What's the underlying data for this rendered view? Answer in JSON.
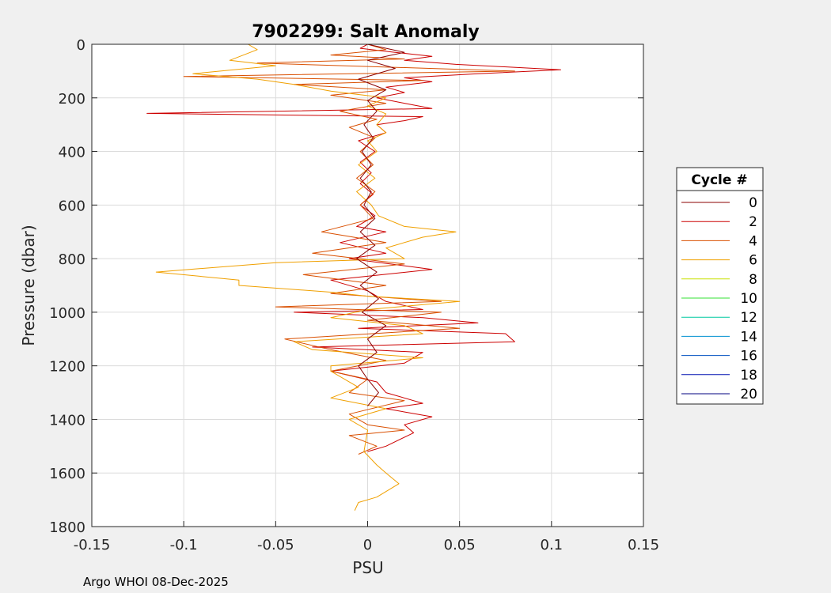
{
  "chart_data": {
    "type": "line",
    "title": "7902299: Salt Anomaly",
    "xlabel": "PSU",
    "ylabel": "Pressure (dbar)",
    "xlim": [
      -0.15,
      0.15
    ],
    "ylim": [
      0,
      1800
    ],
    "y_reversed": true,
    "grid": true,
    "x_ticks": [
      -0.15,
      -0.1,
      -0.05,
      0,
      0.05,
      0.1,
      0.15
    ],
    "x_tick_labels": [
      "-0.15",
      "-0.1",
      "-0.05",
      "0",
      "0.05",
      "0.1",
      "0.15"
    ],
    "y_ticks": [
      0,
      200,
      400,
      600,
      800,
      1000,
      1200,
      1400,
      1600,
      1800
    ],
    "y_tick_labels": [
      "0",
      "200",
      "400",
      "600",
      "800",
      "1000",
      "1200",
      "1400",
      "1600",
      "1800"
    ],
    "legend": {
      "title": "Cycle #",
      "position": "right-outside",
      "entries": [
        {
          "label": "0",
          "color": "#8b0000"
        },
        {
          "label": "2",
          "color": "#cc0000"
        },
        {
          "label": "4",
          "color": "#d94f00"
        },
        {
          "label": "6",
          "color": "#f0a000"
        },
        {
          "label": "8",
          "color": "#c8e000"
        },
        {
          "label": "10",
          "color": "#33e033"
        },
        {
          "label": "12",
          "color": "#00c8a0"
        },
        {
          "label": "14",
          "color": "#0090d0"
        },
        {
          "label": "16",
          "color": "#0050c0"
        },
        {
          "label": "18",
          "color": "#0010b0"
        },
        {
          "label": "20",
          "color": "#000080"
        }
      ]
    },
    "series": [
      {
        "name": "Cycle 2",
        "color": "#cc0000",
        "points": [
          [
            0.0,
            0
          ],
          [
            -0.004,
            15
          ],
          [
            0.015,
            30
          ],
          [
            0.035,
            45
          ],
          [
            0.02,
            60
          ],
          [
            0.048,
            75
          ],
          [
            0.105,
            95
          ],
          [
            0.06,
            110
          ],
          [
            0.02,
            125
          ],
          [
            0.035,
            140
          ],
          [
            0.01,
            160
          ],
          [
            0.02,
            180
          ],
          [
            0.005,
            200
          ],
          [
            0.02,
            220
          ],
          [
            0.035,
            240
          ],
          [
            -0.12,
            258
          ],
          [
            0.03,
            270
          ],
          [
            0.02,
            285
          ],
          [
            0.005,
            300
          ],
          [
            0.01,
            330
          ],
          [
            -0.005,
            360
          ],
          [
            0.004,
            400
          ],
          [
            -0.004,
            440
          ],
          [
            0.002,
            480
          ],
          [
            -0.004,
            520
          ],
          [
            0.003,
            560
          ],
          [
            -0.004,
            600
          ],
          [
            0.004,
            640
          ],
          [
            -0.006,
            680
          ],
          [
            0.01,
            700
          ],
          [
            -0.015,
            740
          ],
          [
            0.01,
            780
          ],
          [
            -0.01,
            800
          ],
          [
            0.035,
            840
          ],
          [
            -0.02,
            880
          ],
          [
            0.0,
            920
          ],
          [
            0.01,
            960
          ],
          [
            0.03,
            990
          ],
          [
            -0.04,
            1000
          ],
          [
            0.03,
            1020
          ],
          [
            0.06,
            1040
          ],
          [
            -0.005,
            1060
          ],
          [
            0.075,
            1080
          ],
          [
            0.08,
            1110
          ],
          [
            -0.03,
            1130
          ],
          [
            0.03,
            1150
          ],
          [
            0.02,
            1190
          ],
          [
            -0.02,
            1220
          ],
          [
            0.005,
            1260
          ],
          [
            0.01,
            1300
          ],
          [
            0.03,
            1340
          ],
          [
            0.01,
            1360
          ],
          [
            0.035,
            1390
          ],
          [
            0.02,
            1420
          ],
          [
            0.025,
            1450
          ],
          [
            0.01,
            1500
          ],
          [
            0.0,
            1520
          ]
        ]
      },
      {
        "name": "Cycle 4",
        "color": "#d94f00",
        "points": [
          [
            0.0,
            0
          ],
          [
            0.01,
            20
          ],
          [
            -0.02,
            40
          ],
          [
            0.02,
            55
          ],
          [
            -0.06,
            70
          ],
          [
            0.08,
            100
          ],
          [
            -0.1,
            120
          ],
          [
            0.03,
            135
          ],
          [
            -0.04,
            150
          ],
          [
            0.01,
            170
          ],
          [
            -0.02,
            190
          ],
          [
            0.01,
            220
          ],
          [
            -0.015,
            250
          ],
          [
            0.005,
            280
          ],
          [
            -0.01,
            310
          ],
          [
            0.004,
            350
          ],
          [
            -0.004,
            400
          ],
          [
            0.003,
            450
          ],
          [
            -0.006,
            500
          ],
          [
            0.004,
            550
          ],
          [
            -0.004,
            600
          ],
          [
            0.003,
            650
          ],
          [
            -0.025,
            700
          ],
          [
            0.01,
            740
          ],
          [
            -0.03,
            780
          ],
          [
            0.02,
            820
          ],
          [
            -0.035,
            860
          ],
          [
            0.01,
            900
          ],
          [
            -0.02,
            930
          ],
          [
            0.04,
            960
          ],
          [
            -0.05,
            980
          ],
          [
            0.04,
            1000
          ],
          [
            0.0,
            1030
          ],
          [
            0.05,
            1060
          ],
          [
            -0.045,
            1100
          ],
          [
            -0.02,
            1140
          ],
          [
            0.01,
            1180
          ],
          [
            -0.02,
            1220
          ],
          [
            0.0,
            1250
          ],
          [
            -0.01,
            1300
          ],
          [
            0.02,
            1330
          ],
          [
            -0.01,
            1380
          ],
          [
            0.0,
            1420
          ],
          [
            0.02,
            1440
          ],
          [
            -0.01,
            1460
          ],
          [
            0.005,
            1500
          ],
          [
            -0.005,
            1530
          ]
        ]
      },
      {
        "name": "Cycle 6",
        "color": "#f0a000",
        "points": [
          [
            -0.065,
            0
          ],
          [
            -0.06,
            20
          ],
          [
            -0.075,
            60
          ],
          [
            -0.05,
            80
          ],
          [
            -0.095,
            110
          ],
          [
            -0.06,
            130
          ],
          [
            -0.04,
            150
          ],
          [
            -0.02,
            175
          ],
          [
            0.01,
            200
          ],
          [
            0.0,
            230
          ],
          [
            0.01,
            260
          ],
          [
            0.005,
            300
          ],
          [
            0.01,
            330
          ],
          [
            0.0,
            360
          ],
          [
            0.005,
            400
          ],
          [
            -0.005,
            450
          ],
          [
            0.004,
            500
          ],
          [
            -0.006,
            550
          ],
          [
            0.002,
            600
          ],
          [
            0.006,
            640
          ],
          [
            0.02,
            680
          ],
          [
            0.048,
            700
          ],
          [
            0.03,
            720
          ],
          [
            0.01,
            760
          ],
          [
            0.02,
            800
          ],
          [
            -0.05,
            815
          ],
          [
            -0.115,
            850
          ],
          [
            -0.07,
            880
          ],
          [
            -0.07,
            900
          ],
          [
            -0.02,
            925
          ],
          [
            0.0,
            940
          ],
          [
            0.05,
            960
          ],
          [
            0.0,
            990
          ],
          [
            -0.02,
            1020
          ],
          [
            0.02,
            1050
          ],
          [
            0.03,
            1080
          ],
          [
            -0.04,
            1110
          ],
          [
            -0.03,
            1140
          ],
          [
            0.03,
            1170
          ],
          [
            -0.02,
            1200
          ],
          [
            -0.02,
            1220
          ],
          [
            -0.005,
            1280
          ],
          [
            -0.02,
            1320
          ],
          [
            0.01,
            1360
          ],
          [
            -0.01,
            1400
          ],
          [
            0.0,
            1440
          ],
          [
            -0.002,
            1520
          ],
          [
            0.005,
            1570
          ],
          [
            0.01,
            1600
          ],
          [
            0.017,
            1640
          ],
          [
            0.005,
            1690
          ],
          [
            -0.005,
            1710
          ],
          [
            -0.007,
            1740
          ]
        ]
      },
      {
        "name": "Cycle 0",
        "color": "#8b0000",
        "points": [
          [
            0.0,
            0
          ],
          [
            0.02,
            30
          ],
          [
            0.0,
            60
          ],
          [
            0.015,
            90
          ],
          [
            -0.005,
            130
          ],
          [
            0.01,
            170
          ],
          [
            0.0,
            210
          ],
          [
            0.005,
            250
          ],
          [
            -0.002,
            300
          ],
          [
            0.003,
            350
          ],
          [
            -0.003,
            400
          ],
          [
            0.002,
            450
          ],
          [
            -0.004,
            500
          ],
          [
            0.002,
            550
          ],
          [
            -0.002,
            600
          ],
          [
            0.004,
            650
          ],
          [
            -0.004,
            700
          ],
          [
            0.004,
            750
          ],
          [
            -0.006,
            800
          ],
          [
            0.005,
            850
          ],
          [
            -0.004,
            900
          ],
          [
            0.006,
            950
          ],
          [
            -0.003,
            1000
          ],
          [
            0.01,
            1050
          ],
          [
            0.0,
            1100
          ],
          [
            0.005,
            1150
          ],
          [
            -0.005,
            1200
          ],
          [
            0.0,
            1250
          ],
          [
            0.006,
            1300
          ],
          [
            0.0,
            1350
          ]
        ]
      }
    ],
    "footer": "Argo WHOI 08-Dec-2025"
  }
}
